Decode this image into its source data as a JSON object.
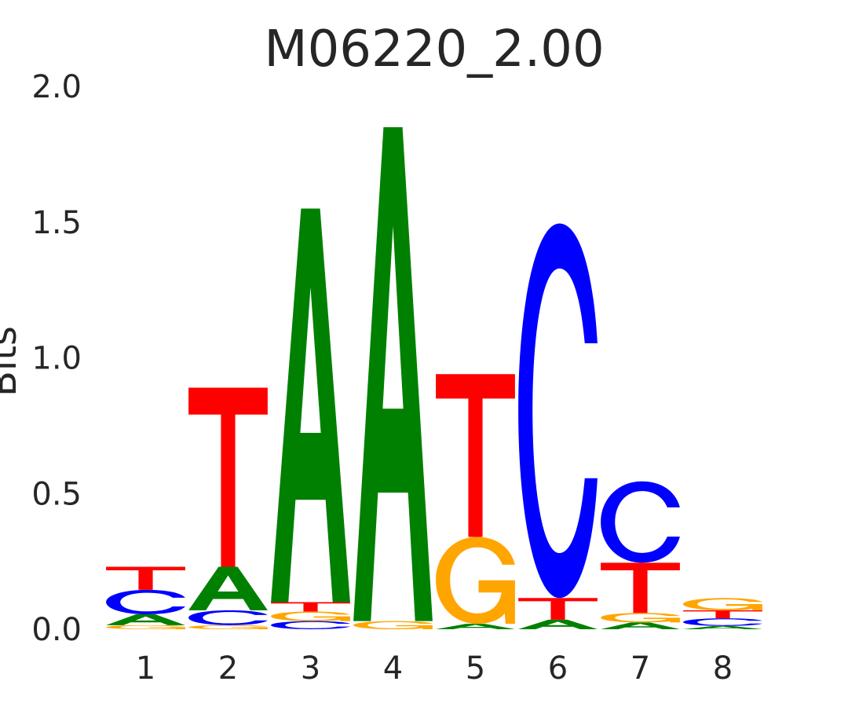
{
  "chart_data": {
    "type": "sequence-logo",
    "title": "M06220_2.00",
    "ylabel": "Bits",
    "xlabel": "",
    "ylim": [
      0,
      2
    ],
    "yticks": [
      "0.0",
      "0.5",
      "1.0",
      "1.5",
      "2.0"
    ],
    "ytick_values": [
      0,
      0.5,
      1.0,
      1.5,
      2.0
    ],
    "categories": [
      "1",
      "2",
      "3",
      "4",
      "5",
      "6",
      "7",
      "8"
    ],
    "colors": {
      "A": "#008000",
      "C": "#0000ff",
      "G": "#ffa500",
      "T": "#ff0000"
    },
    "positions": [
      {
        "position": "1",
        "stack": [
          {
            "letter": "G",
            "bits": 0.015
          },
          {
            "letter": "A",
            "bits": 0.04
          },
          {
            "letter": "C",
            "bits": 0.09
          },
          {
            "letter": "T",
            "bits": 0.085
          }
        ]
      },
      {
        "position": "2",
        "stack": [
          {
            "letter": "G",
            "bits": 0.015
          },
          {
            "letter": "C",
            "bits": 0.055
          },
          {
            "letter": "A",
            "bits": 0.16
          },
          {
            "letter": "T",
            "bits": 0.66
          }
        ]
      },
      {
        "position": "3",
        "stack": [
          {
            "letter": "C",
            "bits": 0.03
          },
          {
            "letter": "G",
            "bits": 0.035
          },
          {
            "letter": "T",
            "bits": 0.035
          },
          {
            "letter": "A",
            "bits": 1.45
          }
        ]
      },
      {
        "position": "4",
        "stack": [
          {
            "letter": "G",
            "bits": 0.03
          },
          {
            "letter": "A",
            "bits": 1.82
          }
        ]
      },
      {
        "position": "5",
        "stack": [
          {
            "letter": "A",
            "bits": 0.02
          },
          {
            "letter": "G",
            "bits": 0.32
          },
          {
            "letter": "T",
            "bits": 0.6
          }
        ]
      },
      {
        "position": "6",
        "stack": [
          {
            "letter": "A",
            "bits": 0.035
          },
          {
            "letter": "T",
            "bits": 0.08
          },
          {
            "letter": "C",
            "bits": 1.38
          }
        ]
      },
      {
        "position": "7",
        "stack": [
          {
            "letter": "A",
            "bits": 0.025
          },
          {
            "letter": "G",
            "bits": 0.035
          },
          {
            "letter": "T",
            "bits": 0.185
          },
          {
            "letter": "C",
            "bits": 0.3
          }
        ]
      },
      {
        "position": "8",
        "stack": [
          {
            "letter": "A",
            "bits": 0.012
          },
          {
            "letter": "C",
            "bits": 0.028
          },
          {
            "letter": "T",
            "bits": 0.03
          },
          {
            "letter": "G",
            "bits": 0.045
          }
        ]
      }
    ]
  }
}
